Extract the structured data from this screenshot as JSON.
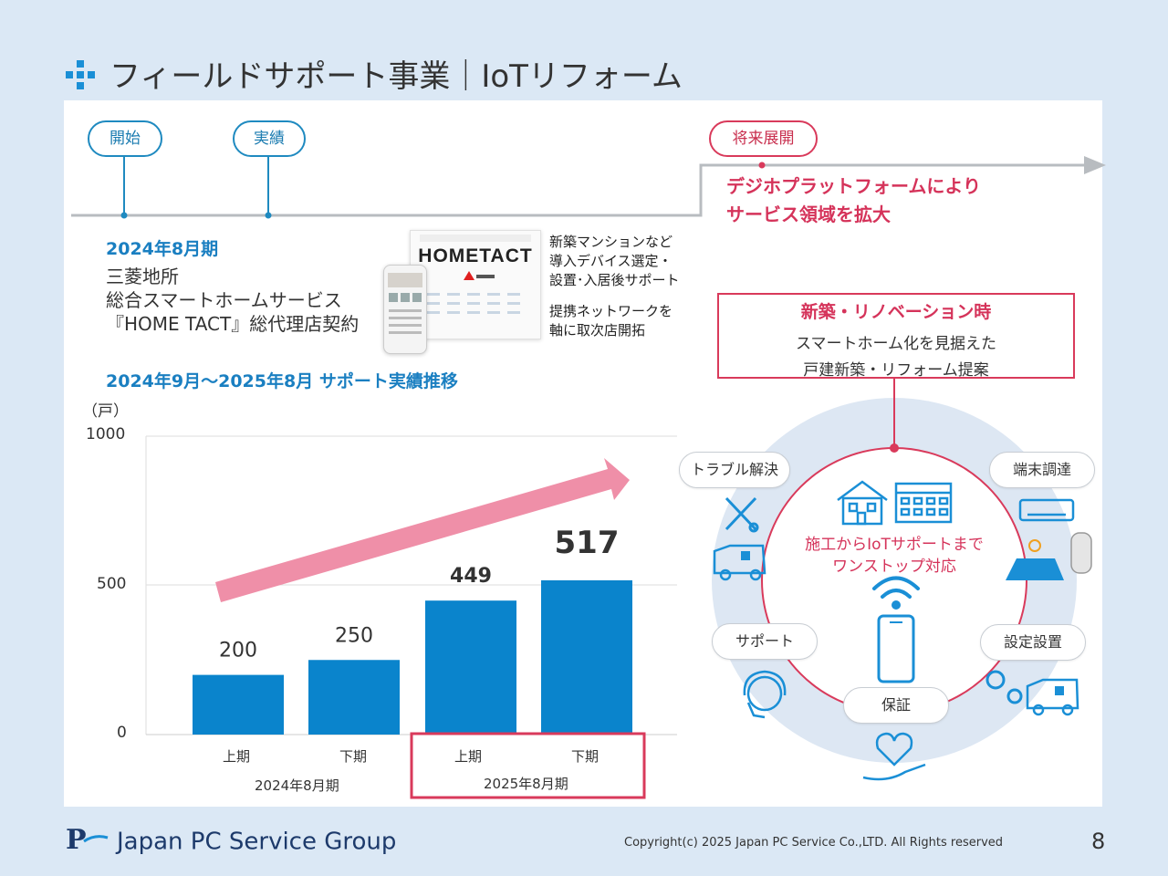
{
  "page": {
    "title": "フィールドサポート事業｜IoTリフォーム",
    "page_number": "8",
    "copyright": "Copyright(c) 2025 Japan PC Service Co.,LTD. All Rights reserved",
    "logo_text": "Japan PC Service Group"
  },
  "timeline": {
    "start_label": "開始",
    "result_label": "実績",
    "future_label": "将来展開",
    "future_text_1": "デジホプラットフォームにより",
    "future_text_2": "サービス領域を拡大"
  },
  "intro": {
    "period": "2024年8月期",
    "line1": "三菱地所",
    "line2": "総合スマートホームサービス",
    "line3": "『HOME TACT』総代理店契約",
    "brand": "HOMETACT",
    "note1_1": "新築マンションなど",
    "note1_2": "導入デバイス選定・",
    "note1_3": "設置･入居後サポート",
    "note2_1": "提携ネットワークを",
    "note2_2": "軸に取次店開拓",
    "chart_heading": "2024年9月～2025年8月 サポート実績推移"
  },
  "chart_data": {
    "type": "bar",
    "title": "2024年9月～2025年8月 サポート実績推移",
    "ylabel": "（戸）",
    "ylim": [
      0,
      1000
    ],
    "yticks": [
      "0",
      "500",
      "1000"
    ],
    "categories": [
      "上期",
      "下期",
      "上期",
      "下期"
    ],
    "groups": [
      "2024年8月期",
      "2025年8月期"
    ],
    "values": [
      200,
      250,
      449,
      517
    ],
    "value_labels": [
      "200",
      "250",
      "449",
      "517"
    ],
    "colors": {
      "bar": "#0a84cc",
      "arrow": "#ef8fa8",
      "highlight": "#d93a5b"
    }
  },
  "diagram": {
    "box_title": "新築・リノベーション時",
    "box_line1": "スマートホーム化を見据えた",
    "box_line2": "戸建新築・リフォーム提案",
    "center_1": "施工からIoTサポートまで",
    "center_2": "ワンストップ対応",
    "bubbles": {
      "trouble": "トラブル解決",
      "device": "端末調達",
      "support": "サポート",
      "setup": "設定設置",
      "warranty": "保証"
    }
  }
}
